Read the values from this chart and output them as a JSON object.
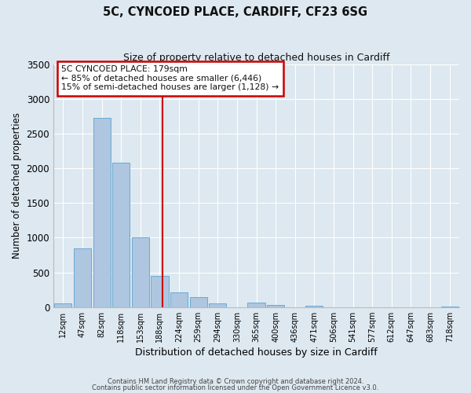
{
  "title": "5C, CYNCOED PLACE, CARDIFF, CF23 6SG",
  "subtitle": "Size of property relative to detached houses in Cardiff",
  "xlabel": "Distribution of detached houses by size in Cardiff",
  "ylabel": "Number of detached properties",
  "bar_color": "#aec6df",
  "bar_edge_color": "#6aaad4",
  "bg_color": "#dde8f0",
  "grid_color": "#ffffff",
  "categories": [
    "12sqm",
    "47sqm",
    "82sqm",
    "118sqm",
    "153sqm",
    "188sqm",
    "224sqm",
    "259sqm",
    "294sqm",
    "330sqm",
    "365sqm",
    "400sqm",
    "436sqm",
    "471sqm",
    "506sqm",
    "541sqm",
    "577sqm",
    "612sqm",
    "647sqm",
    "683sqm",
    "718sqm"
  ],
  "values": [
    55,
    850,
    2730,
    2080,
    1010,
    450,
    210,
    145,
    55,
    0,
    65,
    35,
    0,
    22,
    0,
    0,
    0,
    0,
    0,
    0,
    10
  ],
  "vline_x": 5.14,
  "vline_color": "#cc0000",
  "annotation_line1": "5C CYNCOED PLACE: 179sqm",
  "annotation_line2": "← 85% of detached houses are smaller (6,446)",
  "annotation_line3": "15% of semi-detached houses are larger (1,128) →",
  "annotation_box_color": "#cc0000",
  "annotation_fill": "#ffffff",
  "ylim": [
    0,
    3500
  ],
  "yticks": [
    0,
    500,
    1000,
    1500,
    2000,
    2500,
    3000,
    3500
  ],
  "footer1": "Contains HM Land Registry data © Crown copyright and database right 2024.",
  "footer2": "Contains public sector information licensed under the Open Government Licence v3.0."
}
